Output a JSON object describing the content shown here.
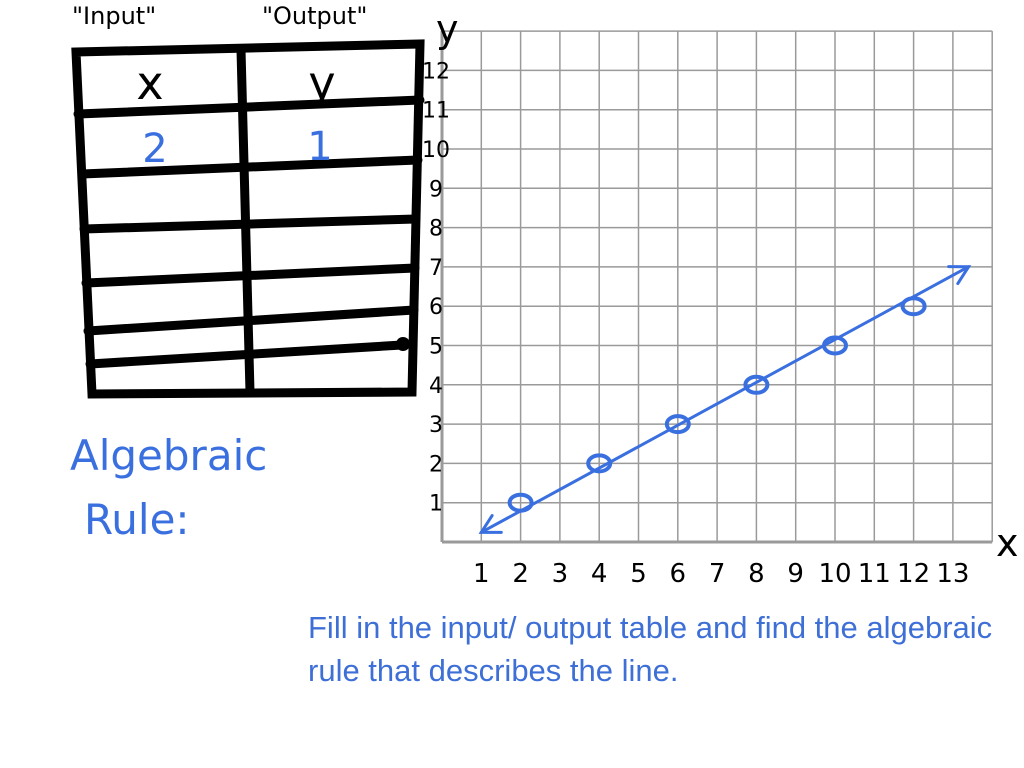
{
  "table": {
    "input_heading": "\"Input\"",
    "output_heading": "\"Output\"",
    "x_header": "x",
    "y_header": "y",
    "rows": [
      {
        "x": "2",
        "y": "1"
      },
      {
        "x": "",
        "y": ""
      },
      {
        "x": "",
        "y": ""
      },
      {
        "x": "",
        "y": ""
      },
      {
        "x": "",
        "y": ""
      },
      {
        "x": "",
        "y": ""
      }
    ]
  },
  "algebraic_rule": {
    "line1": "Algebraic",
    "line2": "Rule:"
  },
  "graph": {
    "x_axis_label": "x",
    "y_axis_label": "y",
    "x_ticks": [
      "1",
      "2",
      "3",
      "4",
      "5",
      "6",
      "7",
      "8",
      "9",
      "10",
      "11",
      "12",
      "13"
    ],
    "y_ticks": [
      "1",
      "2",
      "3",
      "4",
      "5",
      "6",
      "7",
      "8",
      "9",
      "10",
      "11",
      "12"
    ],
    "points": [
      {
        "x": 2,
        "y": 1
      },
      {
        "x": 4,
        "y": 2
      },
      {
        "x": 6,
        "y": 3
      },
      {
        "x": 8,
        "y": 4
      },
      {
        "x": 10,
        "y": 5
      },
      {
        "x": 12,
        "y": 6
      }
    ],
    "line_color": "#3a6fe0",
    "grid_color": "#9a9a9a",
    "ink_color": "#000000"
  },
  "instructions": "Fill in the input/ output table and find the algebraic rule that describes the line."
}
